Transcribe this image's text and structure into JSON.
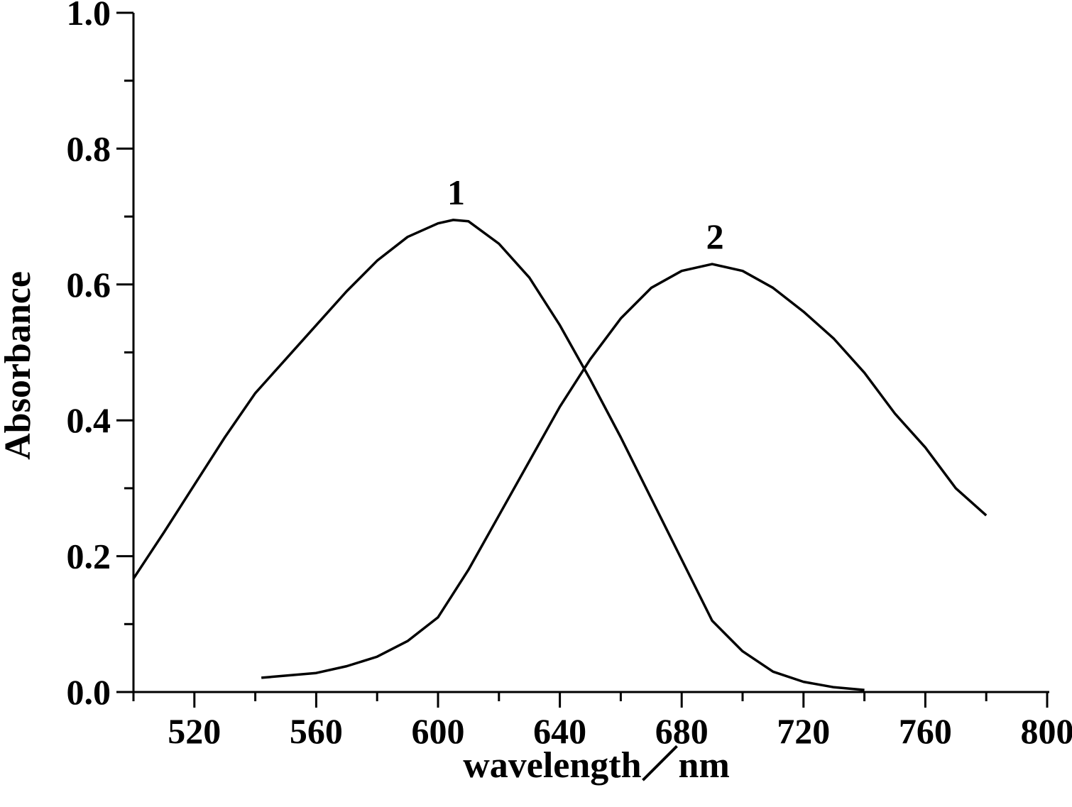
{
  "chart_data": {
    "type": "line",
    "x_label": "wavelength／nm",
    "y_label": "Absorbance",
    "xlim": [
      500,
      800
    ],
    "ylim": [
      0,
      1
    ],
    "xticks": [
      520,
      560,
      600,
      640,
      680,
      720,
      760,
      800
    ],
    "xminorticks": [
      500,
      540,
      580,
      620,
      660,
      700,
      740,
      780
    ],
    "yticks": [
      {
        "value": 0,
        "label": "0.0"
      },
      {
        "value": 0.2,
        "label": "0.2"
      },
      {
        "value": 0.4,
        "label": "0.4"
      },
      {
        "value": 0.6,
        "label": "0.6"
      },
      {
        "value": 0.8,
        "label": "0.8"
      },
      {
        "value": 1,
        "label": "1.0"
      }
    ],
    "yminorticks": [
      0.1,
      0.3,
      0.5,
      0.7,
      0.9
    ],
    "series": [
      {
        "name": "1",
        "color": "#000000",
        "x": [
          500,
          510,
          520,
          530,
          540,
          550,
          560,
          570,
          580,
          590,
          600,
          605,
          610,
          620,
          630,
          640,
          650,
          660,
          670,
          680,
          690,
          700,
          710,
          720,
          730,
          740
        ],
        "values": [
          0.167,
          0.235,
          0.305,
          0.375,
          0.44,
          0.49,
          0.54,
          0.59,
          0.635,
          0.67,
          0.69,
          0.695,
          0.693,
          0.66,
          0.61,
          0.54,
          0.46,
          0.375,
          0.285,
          0.195,
          0.105,
          0.06,
          0.03,
          0.015,
          0.007,
          0.003
        ]
      },
      {
        "name": "2",
        "color": "#000000",
        "x": [
          542,
          560,
          570,
          580,
          590,
          600,
          610,
          620,
          630,
          640,
          650,
          660,
          670,
          680,
          690,
          700,
          710,
          720,
          730,
          740,
          750,
          760,
          770,
          780
        ],
        "values": [
          0.021,
          0.028,
          0.038,
          0.052,
          0.075,
          0.11,
          0.18,
          0.26,
          0.34,
          0.42,
          0.49,
          0.55,
          0.595,
          0.62,
          0.63,
          0.62,
          0.595,
          0.56,
          0.52,
          0.47,
          0.41,
          0.36,
          0.3,
          0.26
        ]
      }
    ]
  }
}
